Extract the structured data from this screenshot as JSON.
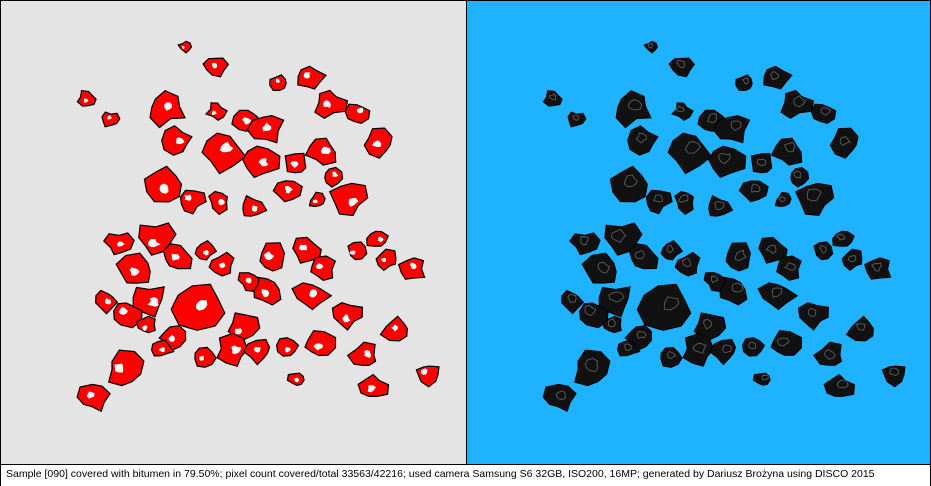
{
  "caption": "Sample [090] covered with bitumen in 79.50%; pixel count covered/total 33563/42216; used camera Samsung S6 32GB, ISO200, 16MP; generated by Dariusz Brożyna using DISCO 2015",
  "colors": {
    "left_background": "#e4e4e4",
    "right_background": "#1fb2ff",
    "covered": "#ff0000",
    "uncovered": "#ffffff",
    "outline": "#000000",
    "stone_dark": "#111111"
  }
}
